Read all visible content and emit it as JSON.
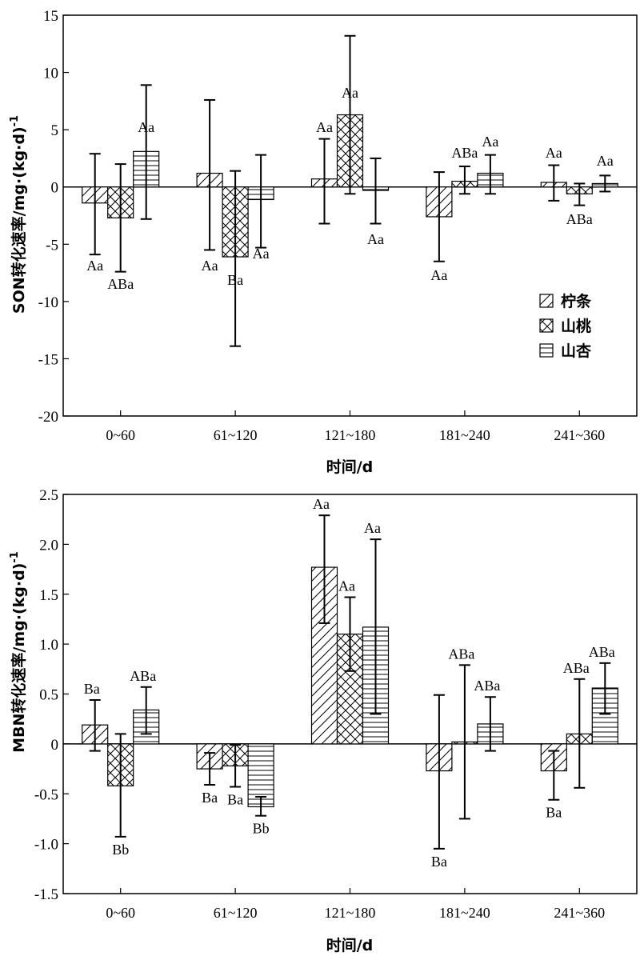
{
  "charts": [
    {
      "type": "bar",
      "ylabel": "SON转化速率/mg·(kg·d)",
      "ylabel_sup": "-1",
      "xlabel": "时间/d",
      "categories": [
        "0~60",
        "61~120",
        "121~180",
        "181~240",
        "241~360"
      ],
      "ylim": [
        -20,
        15
      ],
      "yticks": [
        15,
        10,
        5,
        0,
        -5,
        -10,
        -15,
        -20
      ],
      "legend": {
        "position": "inside right",
        "entries": [
          "柠条",
          "山桃",
          "山杏"
        ]
      },
      "series": [
        {
          "name": "柠条",
          "pattern": "diagonal",
          "values": [
            -1.4,
            1.2,
            0.7,
            -2.6,
            0.4
          ],
          "err_upper": [
            2.9,
            7.6,
            4.2,
            1.3,
            1.9
          ],
          "err_lower": [
            -5.9,
            -5.5,
            -3.2,
            -6.5,
            -1.2
          ],
          "labels": [
            "Aa",
            "Aa",
            "Aa",
            "Aa",
            "Aa"
          ]
        },
        {
          "name": "山桃",
          "pattern": "crosshatch",
          "values": [
            -2.7,
            -6.1,
            6.3,
            0.5,
            -0.6
          ],
          "err_upper": [
            2.0,
            1.4,
            13.2,
            1.8,
            0.3
          ],
          "err_lower": [
            -7.4,
            -13.9,
            -0.6,
            -0.6,
            -1.6
          ],
          "labels": [
            "ABa",
            "Ba",
            "Aa",
            "ABa",
            "ABa"
          ]
        },
        {
          "name": "山杏",
          "pattern": "horizontal",
          "values": [
            3.1,
            -1.1,
            -0.3,
            1.2,
            0.3
          ],
          "err_upper": [
            8.9,
            2.8,
            2.5,
            2.8,
            1.0
          ],
          "err_lower": [
            -2.8,
            -5.3,
            -3.2,
            -0.6,
            -0.4
          ],
          "labels": [
            "Aa",
            "Aa",
            "Aa",
            "Aa",
            "Aa"
          ]
        }
      ]
    },
    {
      "type": "bar",
      "ylabel": "MBN转化速率/mg·(kg·d)",
      "ylabel_sup": "-1",
      "xlabel": "时间/d",
      "categories": [
        "0~60",
        "61~120",
        "121~180",
        "181~240",
        "241~360"
      ],
      "ylim": [
        -1.5,
        2.5
      ],
      "yticks": [
        "2.5",
        "2.0",
        "1.5",
        "1.0",
        "0.5",
        "0",
        "-0.5",
        "-1.0",
        "-1.5"
      ],
      "series": [
        {
          "name": "柠条",
          "pattern": "diagonal",
          "values": [
            0.19,
            -0.25,
            1.77,
            -0.27,
            -0.27
          ],
          "err_upper": [
            0.44,
            -0.09,
            2.29,
            0.49,
            -0.07
          ],
          "err_lower": [
            -0.07,
            -0.41,
            1.21,
            -1.05,
            -0.56
          ],
          "labels": [
            "Ba",
            "Ba",
            "Aa",
            "Ba",
            "Ba"
          ]
        },
        {
          "name": "山桃",
          "pattern": "crosshatch",
          "values": [
            -0.42,
            -0.22,
            1.1,
            0.02,
            0.1
          ],
          "err_upper": [
            0.1,
            -0.01,
            1.47,
            0.79,
            0.65
          ],
          "err_lower": [
            -0.93,
            -0.43,
            0.73,
            -0.75,
            -0.44
          ],
          "labels": [
            "Bb",
            "Ba",
            "Aa",
            "ABa",
            "ABa"
          ]
        },
        {
          "name": "山杏",
          "pattern": "horizontal",
          "values": [
            0.34,
            -0.63,
            1.17,
            0.2,
            0.56
          ],
          "err_upper": [
            0.57,
            -0.53,
            2.05,
            0.47,
            0.81
          ],
          "err_lower": [
            0.1,
            -0.72,
            0.3,
            -0.07,
            0.3
          ],
          "labels": [
            "ABa",
            "Bb",
            "Aa",
            "ABa",
            "ABa"
          ]
        }
      ]
    }
  ]
}
